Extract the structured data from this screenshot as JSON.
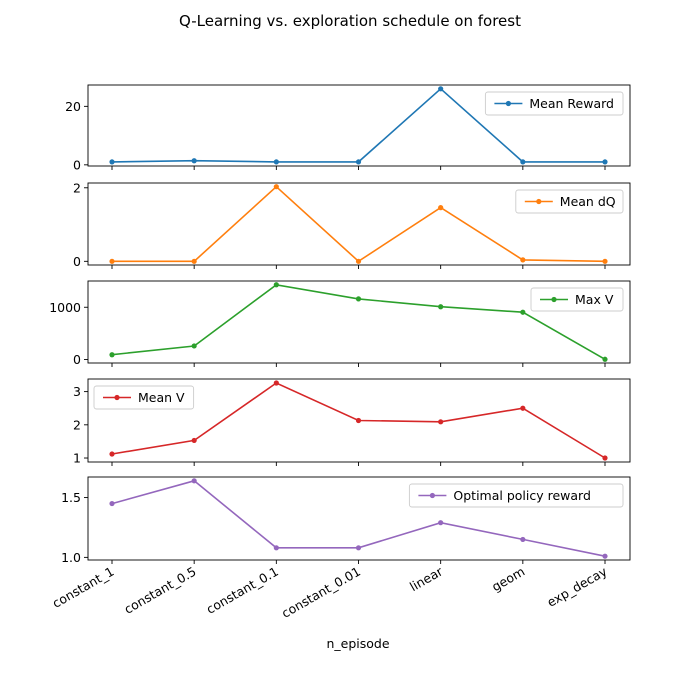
{
  "chart_data": {
    "title": "Q-Learning vs. exploration schedule on forest",
    "xlabel": "n_episode",
    "categories": [
      "constant_1",
      "constant_0.5",
      "constant_0.1",
      "constant_0.01",
      "linear",
      "geom",
      "exp_decay"
    ],
    "panels": [
      {
        "type": "line",
        "series": [
          {
            "name": "Mean Reward",
            "values": [
              1.0,
              1.4,
              1.0,
              1.0,
              26.0,
              1.0,
              1.0
            ],
            "color": "#1f77b4"
          }
        ],
        "ylim": [
          -0.4,
          27.3
        ],
        "yticks": [
          0,
          20
        ],
        "legend": "upper right",
        "grid": false
      },
      {
        "type": "line",
        "series": [
          {
            "name": "Mean dQ",
            "values": [
              0.0,
              0.0,
              2.03,
              0.0,
              1.46,
              0.04,
              0.0
            ],
            "color": "#ff7f0e"
          }
        ],
        "ylim": [
          -0.1,
          2.13
        ],
        "yticks": [
          0,
          2
        ],
        "legend": "upper right",
        "grid": false
      },
      {
        "type": "line",
        "series": [
          {
            "name": "Max V",
            "values": [
              92,
              260,
              1430,
              1160,
              1010,
              905,
              5
            ],
            "color": "#2ca02c"
          }
        ],
        "ylim": [
          -66,
          1502
        ],
        "yticks": [
          0,
          1000
        ],
        "legend": "upper right",
        "grid": false
      },
      {
        "type": "line",
        "series": [
          {
            "name": "Mean V",
            "values": [
              1.12,
              1.53,
              3.26,
              2.13,
              2.09,
              2.5,
              1.0
            ],
            "color": "#d62728"
          }
        ],
        "ylim": [
          0.88,
          3.38
        ],
        "yticks": [
          1,
          2,
          3
        ],
        "legend": "upper left",
        "grid": false
      },
      {
        "type": "line",
        "series": [
          {
            "name": "Optimal policy reward",
            "values": [
              1.45,
              1.64,
              1.08,
              1.08,
              1.29,
              1.15,
              1.01
            ],
            "color": "#9467bd"
          }
        ],
        "ylim": [
          0.978,
          1.672
        ],
        "yticks": [
          1.0,
          1.5
        ],
        "legend": "upper right",
        "grid": false
      }
    ]
  }
}
